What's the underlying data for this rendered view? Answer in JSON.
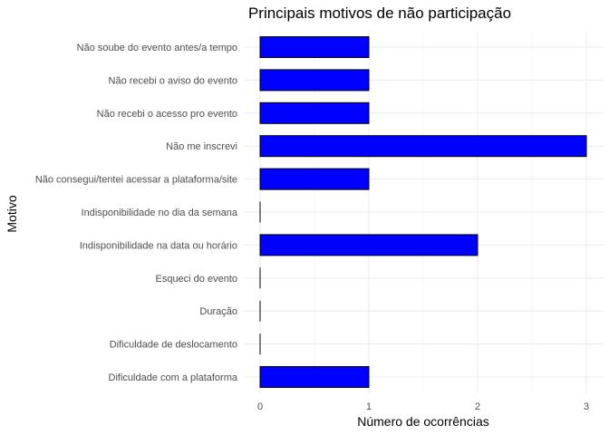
{
  "chart_data": {
    "type": "bar",
    "orientation": "horizontal",
    "title": "Principais motivos de não participação",
    "xlabel": "Número de ocorrências",
    "ylabel": "Motivo",
    "categories": [
      "Não soube do evento antes/a tempo",
      "Não recebi o aviso do evento",
      "Não recebi o acesso pro evento",
      "Não me inscrevi",
      "Não consegui/tentei acessar a plataforma/site",
      "Indisponibilidade no dia da semana",
      "Indisponibilidade na data  ou horário",
      "Esqueci do evento",
      "Duração",
      "Dificuldade de deslocamento",
      "Dificuldade com a plataforma"
    ],
    "values": [
      1,
      1,
      1,
      3,
      1,
      0,
      2,
      0,
      0,
      0,
      1
    ],
    "xlim": [
      0,
      3
    ],
    "xticks": [
      "0",
      "1",
      "2",
      "3"
    ],
    "grid": true,
    "bar_color": "#0000ff",
    "bar_outline": "#000000"
  }
}
